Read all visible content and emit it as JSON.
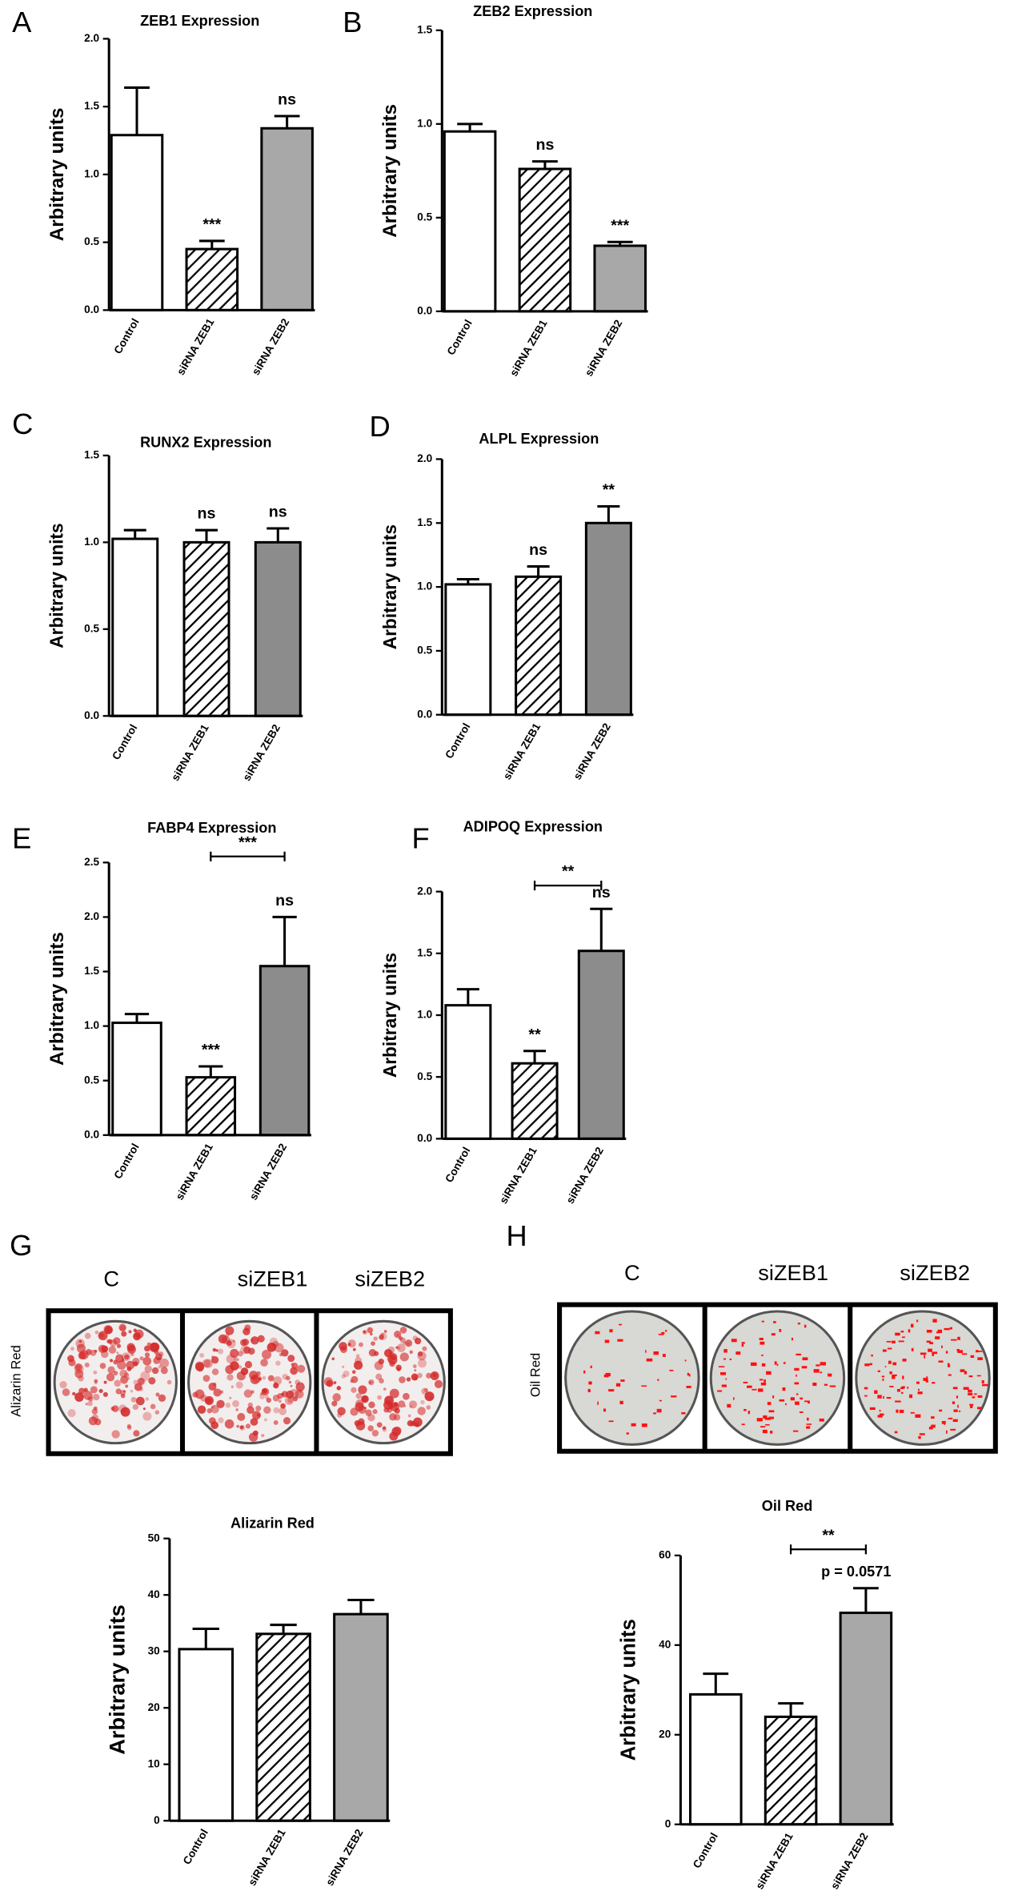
{
  "chart_data": [
    {
      "type": "bar",
      "panel": "A",
      "title": "ZEB1 Expression",
      "ylabel": "Arbitrary units",
      "categories": [
        "Control",
        "siRNA ZEB1",
        "siRNA ZEB2"
      ],
      "values": [
        1.29,
        0.45,
        1.34
      ],
      "errors": [
        0.35,
        0.06,
        0.09
      ],
      "bar_labels": [
        null,
        "***",
        "ns"
      ],
      "fills": [
        "#ffffff",
        "hatch",
        "#a8a8a8"
      ],
      "ylim": [
        0,
        2
      ],
      "yticks": [
        {
          "value": 0,
          "label": "0.0"
        },
        {
          "value": 0.5,
          "label": "0.5"
        },
        {
          "value": 1,
          "label": "1.0"
        },
        {
          "value": 1.5,
          "label": "1.5"
        },
        {
          "value": 2,
          "label": "2.0"
        }
      ]
    },
    {
      "type": "bar",
      "panel": "B",
      "title": "ZEB2 Expression",
      "ylabel": "Arbitrary units",
      "categories": [
        "Control",
        "siRNA ZEB1",
        "siRNA ZEB2"
      ],
      "values": [
        0.96,
        0.76,
        0.35
      ],
      "errors": [
        0.04,
        0.04,
        0.02
      ],
      "bar_labels": [
        null,
        "ns",
        "***"
      ],
      "fills": [
        "#ffffff",
        "hatch",
        "#a8a8a8"
      ],
      "ylim": [
        0,
        1.5
      ],
      "yticks": [
        {
          "value": 0,
          "label": "0.0"
        },
        {
          "value": 0.5,
          "label": "0.5"
        },
        {
          "value": 1,
          "label": "1.0"
        },
        {
          "value": 1.5,
          "label": "1.5"
        }
      ]
    },
    {
      "type": "bar",
      "panel": "C",
      "title": "RUNX2 Expression",
      "ylabel": "Arbitrary units",
      "categories": [
        "Control",
        "siRNA ZEB1",
        "siRNA ZEB2"
      ],
      "values": [
        1.02,
        1.0,
        1.0
      ],
      "errors": [
        0.05,
        0.07,
        0.08
      ],
      "bar_labels": [
        null,
        "ns",
        "ns"
      ],
      "fills": [
        "#ffffff",
        "hatch",
        "#8c8c8c"
      ],
      "ylim": [
        0,
        1.5
      ],
      "yticks": [
        {
          "value": 0,
          "label": "0.0"
        },
        {
          "value": 0.5,
          "label": "0.5"
        },
        {
          "value": 1,
          "label": "1.0"
        },
        {
          "value": 1.5,
          "label": "1.5"
        }
      ]
    },
    {
      "type": "bar",
      "panel": "D",
      "title": "ALPL Expression",
      "ylabel": "Arbitrary units",
      "categories": [
        "Control",
        "siRNA ZEB1",
        "siRNA ZEB2"
      ],
      "values": [
        1.02,
        1.08,
        1.5
      ],
      "errors": [
        0.04,
        0.08,
        0.13
      ],
      "bar_labels": [
        null,
        "ns",
        "**"
      ],
      "fills": [
        "#ffffff",
        "hatch",
        "#8c8c8c"
      ],
      "ylim": [
        0,
        2
      ],
      "yticks": [
        {
          "value": 0,
          "label": "0.0"
        },
        {
          "value": 0.5,
          "label": "0.5"
        },
        {
          "value": 1,
          "label": "1.0"
        },
        {
          "value": 1.5,
          "label": "1.5"
        },
        {
          "value": 2,
          "label": "2.0"
        }
      ]
    },
    {
      "type": "bar",
      "panel": "E",
      "title": "FABP4  Expression",
      "ylabel": "Arbitrary units",
      "categories": [
        "Control",
        "siRNA ZEB1",
        "siRNA ZEB2"
      ],
      "values": [
        1.03,
        0.53,
        1.55
      ],
      "errors": [
        0.08,
        0.1,
        0.45
      ],
      "bar_labels": [
        null,
        "***",
        "ns"
      ],
      "fills": [
        "#ffffff",
        "hatch",
        "#8c8c8c"
      ],
      "brackets": [
        {
          "between": [
            1,
            2
          ],
          "label": "***"
        }
      ],
      "ylim": [
        0,
        2.5
      ],
      "yticks": [
        {
          "value": 0,
          "label": "0.0"
        },
        {
          "value": 0.5,
          "label": "0.5"
        },
        {
          "value": 1,
          "label": "1.0"
        },
        {
          "value": 1.5,
          "label": "1.5"
        },
        {
          "value": 2,
          "label": "2.0"
        },
        {
          "value": 2.5,
          "label": "2.5"
        }
      ]
    },
    {
      "type": "bar",
      "panel": "F",
      "title": "ADIPOQ Expression",
      "ylabel": "Arbitrary units",
      "categories": [
        "Control",
        "siRNA ZEB1",
        "siRNA ZEB2"
      ],
      "values": [
        1.08,
        0.61,
        1.52
      ],
      "errors": [
        0.13,
        0.1,
        0.34
      ],
      "bar_labels": [
        null,
        "**",
        "ns"
      ],
      "fills": [
        "#ffffff",
        "hatch",
        "#8c8c8c"
      ],
      "brackets": [
        {
          "between": [
            1,
            2
          ],
          "label": "**"
        }
      ],
      "ylim": [
        0,
        2
      ],
      "yticks": [
        {
          "value": 0,
          "label": "0.0"
        },
        {
          "value": 0.5,
          "label": "0.5"
        },
        {
          "value": 1,
          "label": "1.0"
        },
        {
          "value": 1.5,
          "label": "1.5"
        },
        {
          "value": 2,
          "label": "2.0"
        }
      ]
    },
    {
      "type": "bar",
      "title": "Alizarin Red",
      "ylabel": "Arbitrary units",
      "categories": [
        "Control",
        "siRNA ZEB1",
        "siRNA ZEB2"
      ],
      "values": [
        30.4,
        33.1,
        36.6
      ],
      "errors": [
        3.6,
        1.6,
        2.5
      ],
      "bar_labels": [
        null,
        null,
        null
      ],
      "fills": [
        "#ffffff",
        "hatch",
        "#a8a8a8"
      ],
      "ylim": [
        0,
        50
      ],
      "yticks": [
        0,
        10,
        20,
        30,
        40,
        50
      ]
    },
    {
      "type": "bar",
      "title": "Oil Red",
      "ylabel": "Arbitrary units",
      "categories": [
        "Control",
        "siRNA ZEB1",
        "siRNA ZEB2"
      ],
      "values": [
        29,
        24,
        47.2
      ],
      "errors": [
        4.6,
        3,
        5.5
      ],
      "bar_labels": [
        null,
        null,
        "p = 0.0571"
      ],
      "fills": [
        "#ffffff",
        "hatch",
        "#a8a8a8"
      ],
      "brackets": [
        {
          "between": [
            1,
            2
          ],
          "label": "**"
        }
      ],
      "ylim": [
        0,
        60
      ],
      "yticks": [
        0,
        20,
        40,
        60
      ]
    }
  ],
  "image_panels": [
    {
      "panel": "G",
      "row_label": "Alizarin Red",
      "columns": [
        "C",
        "siZEB1",
        "siZEB2"
      ]
    },
    {
      "panel": "H",
      "row_label": "Oil Red",
      "columns": [
        "C",
        "siZEB1",
        "siZEB2"
      ]
    }
  ]
}
